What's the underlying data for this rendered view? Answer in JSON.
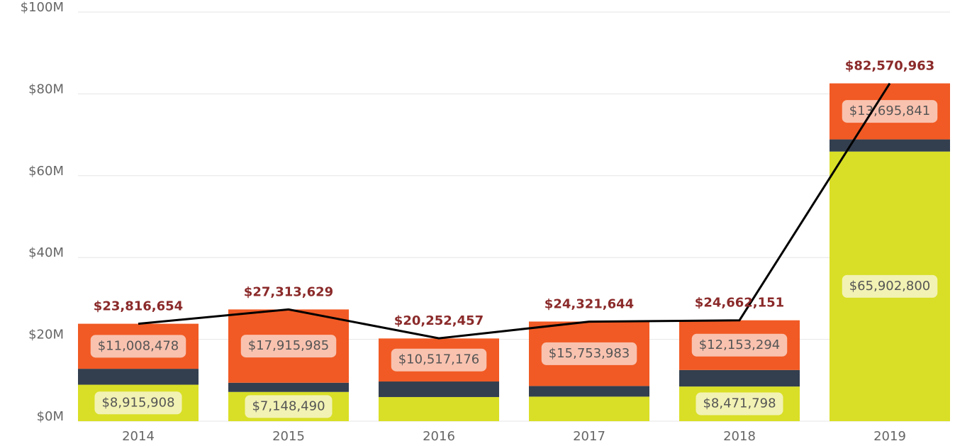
{
  "chart_data": {
    "type": "stacked_bar_line",
    "categories": [
      "2014",
      "2015",
      "2016",
      "2017",
      "2018",
      "2019"
    ],
    "series": [
      {
        "color": "#d9df26",
        "values": [
          8915908,
          7148490,
          5900000,
          6000000,
          8471798,
          65902800
        ],
        "value_labels": [
          "$8,915,908",
          "$7,148,490",
          null,
          null,
          "$8,471,798",
          "$65,902,800"
        ],
        "label_bg": "#f4f4c4"
      },
      {
        "color": "#333f4f",
        "values": [
          3892268,
          2249154,
          3800000,
          2600000,
          4037059,
          2972322
        ]
      },
      {
        "color": "#f15a24",
        "values": [
          11008478,
          17915985,
          10517176,
          15753983,
          12153294,
          13695841
        ],
        "value_labels": [
          "$11,008,478",
          "$17,915,985",
          "$10,517,176",
          "$15,753,983",
          "$12,153,294",
          "$13,695,841"
        ],
        "label_bg": "#f9cdbf"
      }
    ],
    "line": {
      "color": "#000000",
      "values": [
        23816654,
        27313629,
        20252457,
        24321644,
        24662151,
        82570963
      ],
      "value_labels": [
        "$23,816,654",
        "$27,313,629",
        "$20,252,457",
        "$24,321,644",
        "$24,662,151",
        "$82,570,963"
      ]
    },
    "ylim": [
      0,
      100000000
    ],
    "yticks": [
      {
        "value": 0,
        "label": "$0M"
      },
      {
        "value": 20000000,
        "label": "$20M"
      },
      {
        "value": 40000000,
        "label": "$40M"
      },
      {
        "value": 60000000,
        "label": "$60M"
      },
      {
        "value": 80000000,
        "label": "$80M"
      },
      {
        "value": 100000000,
        "label": "$100M"
      }
    ],
    "grid": true
  }
}
